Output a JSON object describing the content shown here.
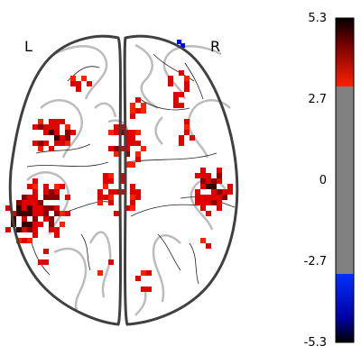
{
  "orientation_labels": {
    "left": "L",
    "right": "R"
  },
  "colorbar": {
    "ticks": [
      "5.3",
      "2.7",
      "0",
      "-2.7",
      "-5.3"
    ],
    "vmin": -5.3,
    "vmax": 5.3,
    "threshold": 2.7,
    "colors": {
      "positive_high": "#000000",
      "positive_mid": "#e00000",
      "positive_low": "#ff2000",
      "neutral": "#808080",
      "negative_low": "#0030ff",
      "negative_high": "#000000"
    }
  },
  "colors": {
    "brain_outline": "#404040",
    "contour": "#bcbcbc",
    "sulci": "#202020",
    "activation": "#e00000",
    "activation_dark": "#3a0000",
    "deactivation": "#0000ff"
  }
}
